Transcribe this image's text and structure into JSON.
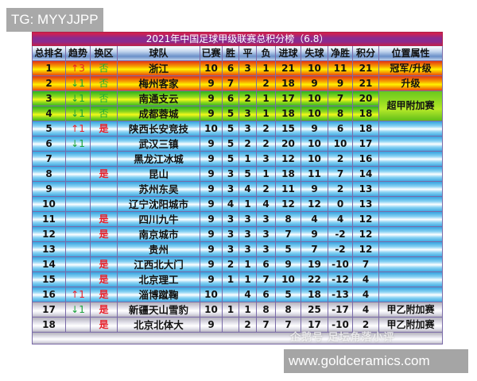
{
  "watermark_top": "TG: MYYJJPP",
  "watermark_bottom": "www.goldceramics.com",
  "watermark_overlay": "企鹅号 足坛角落小评",
  "table": {
    "title": "2021年中国足球甲级联赛总积分榜（6.8）",
    "headers": [
      "总排名",
      "趋势",
      "换区",
      "球队",
      "已赛",
      "胜",
      "平",
      "负",
      "进球",
      "失球",
      "净胜",
      "积分",
      "位置属性"
    ],
    "rows": [
      {
        "rank": "1",
        "trend": "↑3",
        "trend_dir": "up",
        "zone": "否",
        "team": "浙江",
        "played": "10",
        "win": "6",
        "draw": "3",
        "loss": "1",
        "gf": "21",
        "ga": "10",
        "gd": "11",
        "pts": "21",
        "status": "冠军/升级"
      },
      {
        "rank": "2",
        "trend": "↓1",
        "trend_dir": "down",
        "zone": "否",
        "team": "梅州客家",
        "played": "9",
        "win": "7",
        "draw": "",
        "loss": "2",
        "gf": "18",
        "ga": "9",
        "gd": "9",
        "pts": "21",
        "status": "升级"
      },
      {
        "rank": "3",
        "trend": "↓1",
        "trend_dir": "down",
        "zone": "否",
        "team": "南通支云",
        "played": "9",
        "win": "6",
        "draw": "2",
        "loss": "1",
        "gf": "17",
        "ga": "10",
        "gd": "7",
        "pts": "20",
        "status": "超甲附加赛"
      },
      {
        "rank": "4",
        "trend": "↓1",
        "trend_dir": "down",
        "zone": "否",
        "team": "成都蓉城",
        "played": "9",
        "win": "5",
        "draw": "3",
        "loss": "1",
        "gf": "18",
        "ga": "10",
        "gd": "8",
        "pts": "18",
        "status": ""
      },
      {
        "rank": "5",
        "trend": "↑1",
        "trend_dir": "up",
        "zone": "是",
        "team": "陕西长安竞技",
        "played": "10",
        "win": "5",
        "draw": "3",
        "loss": "2",
        "gf": "15",
        "ga": "9",
        "gd": "6",
        "pts": "18",
        "status": ""
      },
      {
        "rank": "6",
        "trend": "↓1",
        "trend_dir": "down",
        "zone": "",
        "team": "武汉三镇",
        "played": "9",
        "win": "5",
        "draw": "2",
        "loss": "2",
        "gf": "20",
        "ga": "10",
        "gd": "10",
        "pts": "17",
        "status": ""
      },
      {
        "rank": "7",
        "trend": "",
        "trend_dir": "",
        "zone": "",
        "team": "黑龙江冰城",
        "played": "9",
        "win": "5",
        "draw": "1",
        "loss": "3",
        "gf": "12",
        "ga": "10",
        "gd": "2",
        "pts": "16",
        "status": ""
      },
      {
        "rank": "8",
        "trend": "",
        "trend_dir": "",
        "zone": "是",
        "team": "昆山",
        "played": "9",
        "win": "3",
        "draw": "5",
        "loss": "1",
        "gf": "18",
        "ga": "11",
        "gd": "7",
        "pts": "14",
        "status": ""
      },
      {
        "rank": "9",
        "trend": "",
        "trend_dir": "",
        "zone": "",
        "team": "苏州东吴",
        "played": "9",
        "win": "3",
        "draw": "4",
        "loss": "2",
        "gf": "11",
        "ga": "9",
        "gd": "2",
        "pts": "13",
        "status": ""
      },
      {
        "rank": "10",
        "trend": "",
        "trend_dir": "",
        "zone": "",
        "team": "辽宁沈阳城市",
        "played": "9",
        "win": "4",
        "draw": "1",
        "loss": "4",
        "gf": "12",
        "ga": "12",
        "gd": "0",
        "pts": "13",
        "status": ""
      },
      {
        "rank": "11",
        "trend": "",
        "trend_dir": "",
        "zone": "是",
        "team": "四川九牛",
        "played": "9",
        "win": "3",
        "draw": "3",
        "loss": "3",
        "gf": "8",
        "ga": "4",
        "gd": "4",
        "pts": "12",
        "status": ""
      },
      {
        "rank": "12",
        "trend": "",
        "trend_dir": "",
        "zone": "是",
        "team": "南京城市",
        "played": "9",
        "win": "3",
        "draw": "3",
        "loss": "3",
        "gf": "7",
        "ga": "9",
        "gd": "-2",
        "pts": "12",
        "status": ""
      },
      {
        "rank": "13",
        "trend": "",
        "trend_dir": "",
        "zone": "",
        "team": "贵州",
        "played": "9",
        "win": "3",
        "draw": "3",
        "loss": "3",
        "gf": "5",
        "ga": "7",
        "gd": "-2",
        "pts": "12",
        "status": ""
      },
      {
        "rank": "14",
        "trend": "",
        "trend_dir": "",
        "zone": "是",
        "team": "江西北大门",
        "played": "9",
        "win": "2",
        "draw": "1",
        "loss": "6",
        "gf": "9",
        "ga": "19",
        "gd": "-10",
        "pts": "7",
        "status": ""
      },
      {
        "rank": "15",
        "trend": "",
        "trend_dir": "",
        "zone": "是",
        "team": "北京理工",
        "played": "9",
        "win": "1",
        "draw": "1",
        "loss": "7",
        "gf": "10",
        "ga": "22",
        "gd": "-12",
        "pts": "4",
        "status": ""
      },
      {
        "rank": "16",
        "trend": "↑1",
        "trend_dir": "up",
        "zone": "是",
        "team": "淄博蹴鞠",
        "played": "10",
        "win": "",
        "draw": "4",
        "loss": "6",
        "gf": "5",
        "ga": "18",
        "gd": "-13",
        "pts": "4",
        "status": ""
      },
      {
        "rank": "17",
        "trend": "↓1",
        "trend_dir": "down",
        "zone": "是",
        "team": "新疆天山雪豹",
        "played": "10",
        "win": "1",
        "draw": "1",
        "loss": "8",
        "gf": "8",
        "ga": "25",
        "gd": "-17",
        "pts": "4",
        "status": "甲乙附加赛"
      },
      {
        "rank": "18",
        "trend": "",
        "trend_dir": "",
        "zone": "是",
        "team": "北京北体大",
        "played": "9",
        "win": "",
        "draw": "2",
        "loss": "7",
        "gf": "7",
        "ga": "17",
        "gd": "-10",
        "pts": "2",
        "status": "甲乙附加赛"
      }
    ]
  }
}
